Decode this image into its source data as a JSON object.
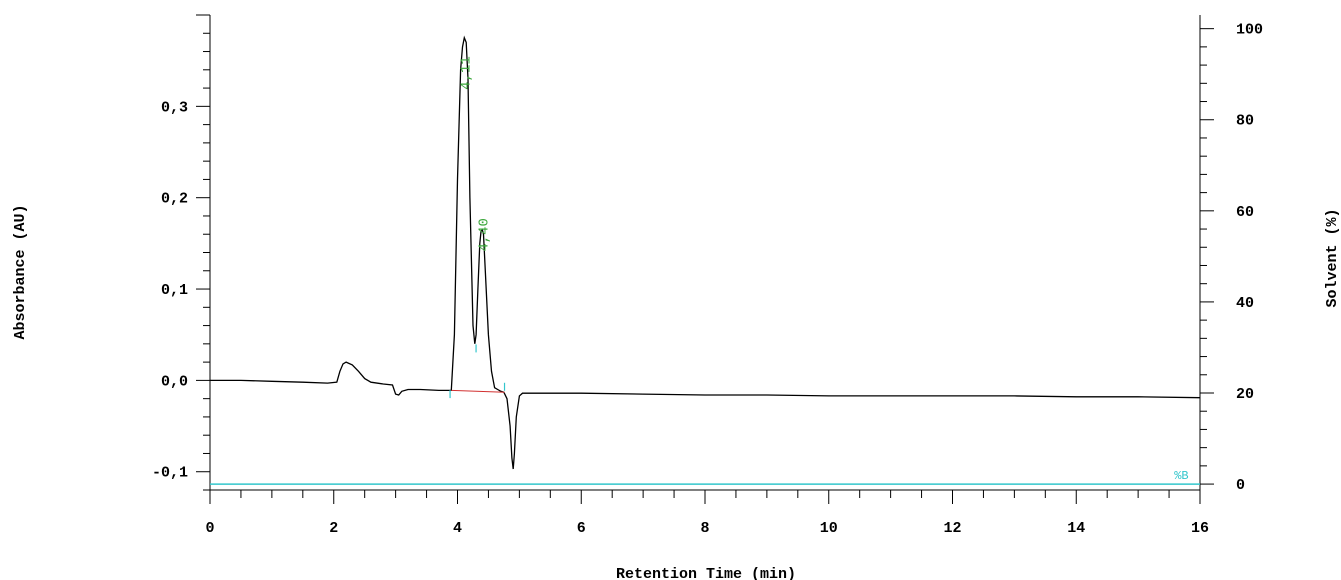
{
  "chart_data": {
    "type": "line",
    "title": "",
    "xlabel": "Retention Time (min)",
    "ylabel": "Absorbance (AU)",
    "y2label": "Solvent (%)",
    "xlim": [
      0,
      16.0
    ],
    "ylim": [
      -0.12,
      0.4
    ],
    "y2lim": [
      -1.3,
      103
    ],
    "x_ticks": [
      0,
      2,
      4,
      6,
      8,
      10,
      12,
      14,
      16
    ],
    "y_ticks": [
      -0.1,
      0.0,
      0.1,
      0.2,
      0.3
    ],
    "y_tick_labels": [
      "-0,1",
      "0,0",
      "0,1",
      "0,2",
      "0,3"
    ],
    "y2_ticks": [
      0,
      20,
      40,
      60,
      80,
      100
    ],
    "grid": false,
    "series": [
      {
        "color": "#000000",
        "x": [
          0.0,
          0.5,
          1.0,
          1.5,
          1.9,
          2.05,
          2.1,
          2.15,
          2.2,
          2.3,
          2.4,
          2.5,
          2.6,
          2.8,
          2.95,
          3.0,
          3.05,
          3.1,
          3.2,
          3.4,
          3.7,
          3.9,
          3.95,
          4.0,
          4.05,
          4.08,
          4.11,
          4.14,
          4.17,
          4.2,
          4.25,
          4.28,
          4.3,
          4.33,
          4.36,
          4.38,
          4.4,
          4.42,
          4.45,
          4.5,
          4.55,
          4.6,
          4.65,
          4.7,
          4.75,
          4.8,
          4.85,
          4.88,
          4.9,
          4.92,
          4.95,
          5.0,
          5.05,
          5.1,
          5.3,
          5.6,
          6.0,
          7.0,
          8.0,
          9.0,
          10.0,
          11.0,
          12.0,
          13.0,
          14.0,
          15.0,
          16.0
        ],
        "y": [
          0.0,
          0.0,
          -0.001,
          -0.002,
          -0.003,
          -0.002,
          0.01,
          0.018,
          0.02,
          0.017,
          0.01,
          0.002,
          -0.002,
          -0.004,
          -0.005,
          -0.015,
          -0.016,
          -0.012,
          -0.01,
          -0.01,
          -0.011,
          -0.011,
          0.05,
          0.22,
          0.34,
          0.365,
          0.375,
          0.37,
          0.33,
          0.2,
          0.06,
          0.04,
          0.05,
          0.1,
          0.15,
          0.163,
          0.165,
          0.16,
          0.12,
          0.05,
          0.01,
          -0.008,
          -0.01,
          -0.012,
          -0.013,
          -0.02,
          -0.05,
          -0.085,
          -0.097,
          -0.08,
          -0.04,
          -0.017,
          -0.014,
          -0.014,
          -0.014,
          -0.014,
          -0.014,
          -0.015,
          -0.016,
          -0.016,
          -0.017,
          -0.017,
          -0.017,
          -0.017,
          -0.018,
          -0.018,
          -0.019
        ]
      },
      {
        "color": "#33c6cc",
        "x": [
          0,
          16.0
        ],
        "y": [
          0,
          0
        ]
      }
    ],
    "baseline": {
      "color": "#d23030",
      "x": [
        3.9,
        4.76
      ],
      "y": [
        -0.011,
        -0.013
      ]
    },
    "peak_labels": [
      {
        "text": "4,11",
        "x": 4.11,
        "y": 0.375,
        "color": "#3aa63a"
      },
      {
        "text": "4,40",
        "x": 4.4,
        "y": 0.165,
        "color": "#3aa63a"
      }
    ],
    "peak_markers": [
      {
        "x": 3.88,
        "y": -0.015
      },
      {
        "x": 4.3,
        "y": 0.035
      },
      {
        "x": 4.76,
        "y": -0.007
      }
    ],
    "series_tag": {
      "text": "%B",
      "x": 15.7,
      "y2": 1.5
    }
  }
}
